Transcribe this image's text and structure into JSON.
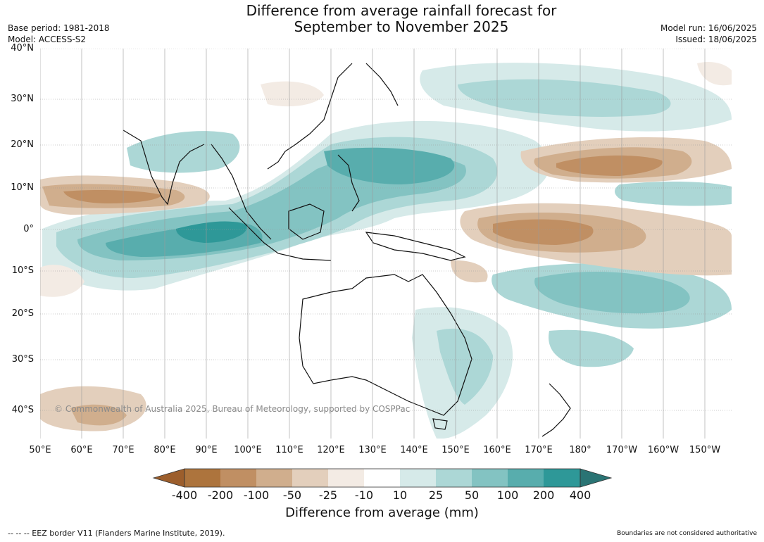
{
  "title": {
    "line1": "Difference from average rainfall forecast for",
    "line2": "September to November 2025"
  },
  "meta": {
    "base_period": "Base period: 1981-2018",
    "model": "Model: ACCESS-S2",
    "model_run": "Model run: 16/06/2025",
    "issued": "Issued: 18/06/2025"
  },
  "map": {
    "lat_labels": [
      "40°N",
      "30°N",
      "20°N",
      "10°N",
      "0°",
      "10°S",
      "20°S",
      "30°S",
      "40°S"
    ],
    "lon_labels": [
      "50°E",
      "60°E",
      "70°E",
      "80°E",
      "90°E",
      "100°E",
      "110°E",
      "120°E",
      "130°E",
      "140°E",
      "150°E",
      "160°E",
      "170°E",
      "180°",
      "170°W",
      "160°W",
      "150°W"
    ],
    "copyright": "© Commonwealth of Australia 2025, Bureau of Meteorology, supported by COSPPac"
  },
  "colorbar": {
    "title": "Difference from average (mm)",
    "ticks": [
      "-400",
      "-200",
      "-100",
      "-50",
      "-25",
      "-10",
      "10",
      "25",
      "50",
      "100",
      "200",
      "400"
    ],
    "colors": [
      "#9c5e2c",
      "#ad743d",
      "#c08f63",
      "#d0ae8d",
      "#e3cfbc",
      "#f3ebe4",
      "#ffffff",
      "#d6eae9",
      "#acd7d6",
      "#83c3c2",
      "#58adad",
      "#2e9898",
      "#2a7474"
    ]
  },
  "footer": {
    "eez": "--  --  -- EEZ border V11 (Flanders Marine Institute, 2019).",
    "disclaimer": "Boundaries are not considered authoritative"
  }
}
